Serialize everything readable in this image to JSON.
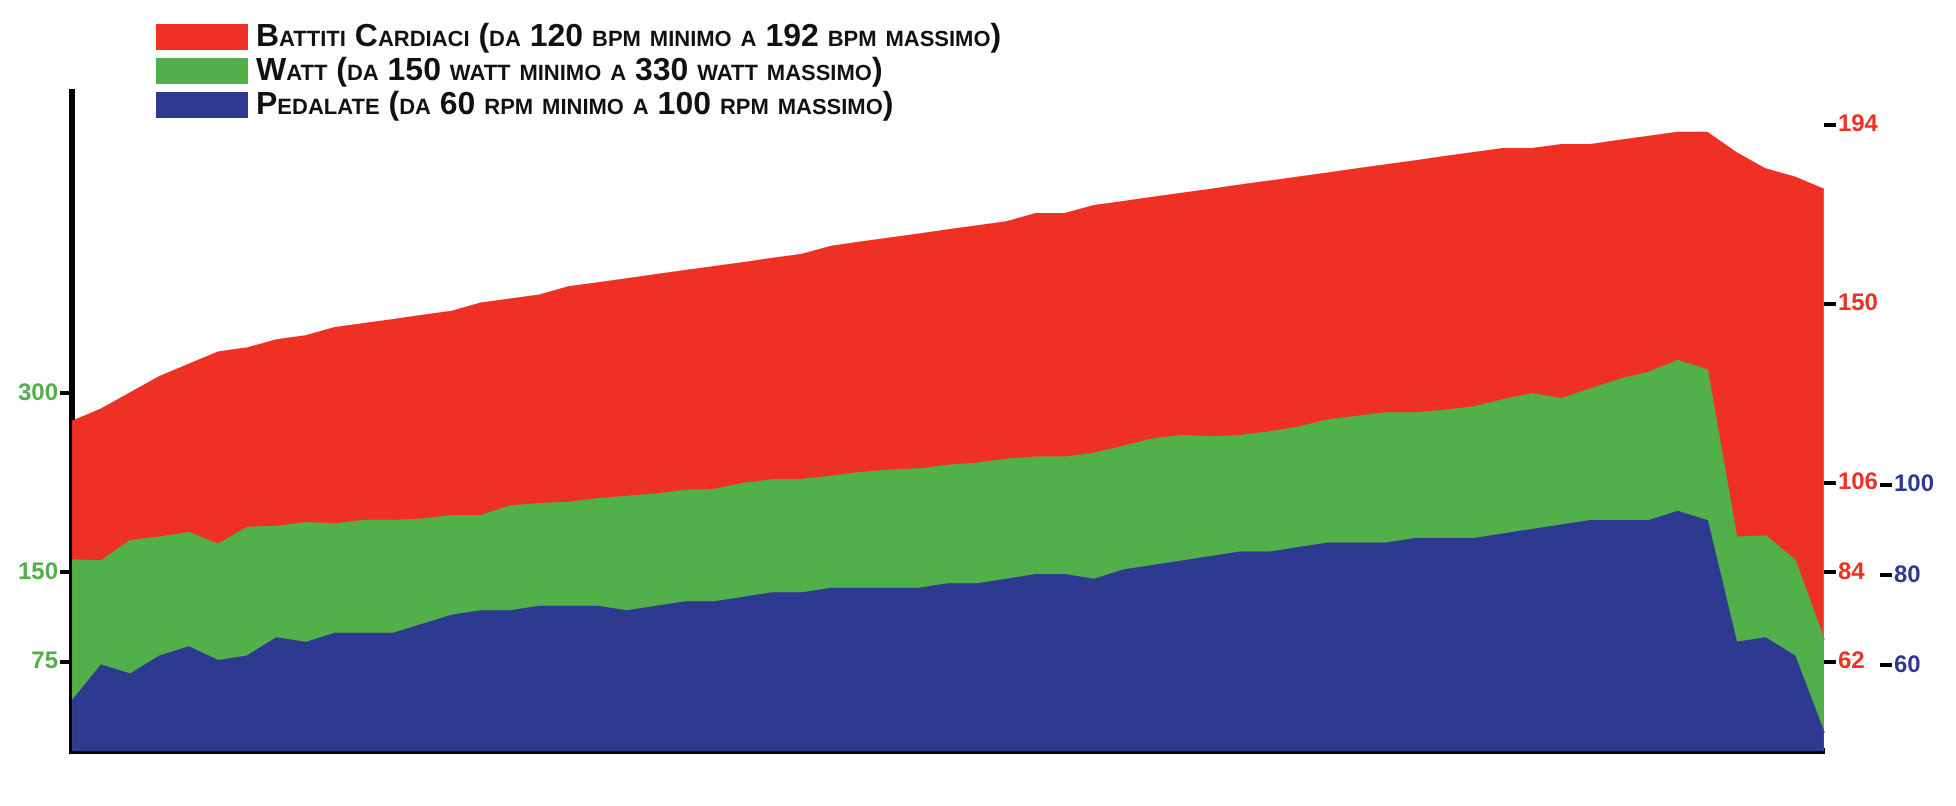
{
  "chart_data": {
    "type": "area",
    "categories": [
      null,
      null,
      null,
      null,
      null,
      null,
      null,
      null,
      null,
      null,
      null,
      null,
      null,
      null,
      null,
      null,
      null,
      null,
      null,
      null,
      null,
      null,
      null,
      null,
      null,
      null,
      null,
      null,
      null,
      null,
      null,
      null,
      null,
      null,
      null,
      null,
      null,
      null,
      null,
      null,
      null,
      null,
      null,
      null,
      null,
      null,
      null,
      null,
      null,
      null,
      null,
      null,
      null,
      null,
      null,
      null,
      null,
      null,
      null,
      null,
      null
    ],
    "series": [
      {
        "name": "Battiti Cardiaci (da 120 bpm minimo a 192 bpm massimo)",
        "color": "#ee3124",
        "axis": "y2",
        "values": [
          121,
          124,
          128,
          132,
          135,
          138,
          139,
          141,
          142,
          144,
          145,
          146,
          147,
          148,
          150,
          151,
          152,
          154,
          155,
          156,
          157,
          158,
          159,
          160,
          161,
          162,
          164,
          165,
          166,
          167,
          168,
          169,
          170,
          172,
          172,
          174,
          175,
          176,
          177,
          178,
          179,
          180,
          181,
          182,
          183,
          184,
          185,
          186,
          187,
          188,
          188,
          189,
          189,
          190,
          191,
          192,
          192,
          187,
          183,
          181,
          178
        ]
      },
      {
        "name": "Watt (da 150 watt minimo a 330 watt massimo)",
        "color": "#52b04a",
        "values": [
          160,
          159,
          176,
          179,
          183,
          173,
          187,
          188,
          191,
          190,
          193,
          193,
          194,
          197,
          197,
          205,
          207,
          208,
          211,
          213,
          215,
          218,
          219,
          224,
          227,
          227,
          230,
          233,
          235,
          236,
          239,
          241,
          244,
          246,
          246,
          249,
          255,
          261,
          264,
          263,
          264,
          267,
          271,
          277,
          280,
          283,
          283,
          285,
          288,
          294,
          299,
          295,
          303,
          311,
          317,
          327,
          319,
          179,
          180,
          160,
          93
        ]
      },
      {
        "name": "Pedalate (da 60 rpm minimo a 100 rpm massimo)",
        "color": "#2e3990",
        "axis": "y3",
        "values": [
          52,
          60,
          58,
          62,
          64,
          61,
          62,
          66,
          65,
          67,
          67,
          67,
          69,
          71,
          72,
          72,
          73,
          73,
          73,
          72,
          73,
          74,
          74,
          75,
          76,
          76,
          77,
          77,
          77,
          77,
          78,
          78,
          79,
          80,
          80,
          79,
          81,
          82,
          83,
          84,
          85,
          85,
          86,
          87,
          87,
          87,
          88,
          88,
          88,
          89,
          90,
          91,
          92,
          92,
          92,
          94,
          92,
          65,
          66,
          62,
          45
        ]
      }
    ],
    "ylim": [
      0,
      552
    ],
    "yticks": [
      75,
      150,
      300
    ],
    "y2lim": [
      40,
      202
    ],
    "y2ticks": [
      62,
      84,
      106,
      150,
      194
    ],
    "y3lim": [
      41,
      187
    ],
    "y3ticks": [
      60,
      80,
      100
    ],
    "grid": false,
    "legend": "top left"
  }
}
